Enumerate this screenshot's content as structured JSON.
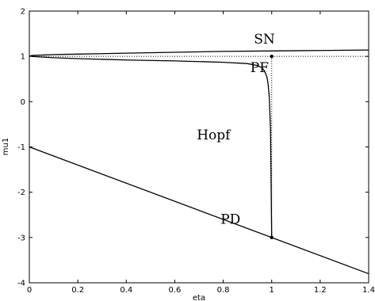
{
  "chart_data": {
    "type": "line",
    "title": "",
    "xlabel": "eta",
    "ylabel": "mu1",
    "xlim": [
      0,
      1.4
    ],
    "ylim": [
      -4,
      2
    ],
    "xticks": [
      "0",
      "0.2",
      "0.4",
      "0.6",
      "0.8",
      "1",
      "1.2",
      "1.4"
    ],
    "yticks": [
      "2",
      "1",
      "0",
      "-1",
      "-2",
      "-3",
      "-4"
    ],
    "grid": false,
    "series": [
      {
        "style": "solid",
        "x": [
          0,
          0.01,
          0.1,
          0.2,
          0.4,
          0.6,
          0.8,
          1.0,
          1.2,
          1.4
        ],
        "y": [
          1.0,
          1.02,
          1.04,
          1.05,
          1.07,
          1.09,
          1.11,
          1.12,
          1.13,
          1.14
        ]
      },
      {
        "style": "solid",
        "x": [
          0.01,
          0.1,
          0.2,
          0.4,
          0.6,
          0.8,
          0.9,
          0.94,
          0.96,
          0.97,
          0.98,
          0.985,
          0.99,
          0.995,
          1.0
        ],
        "y": [
          1.0,
          0.97,
          0.95,
          0.92,
          0.9,
          0.87,
          0.84,
          0.8,
          0.75,
          0.68,
          0.55,
          0.4,
          0.1,
          -0.6,
          -3.0
        ]
      },
      {
        "style": "solid",
        "x": [
          0,
          1.4
        ],
        "y": [
          -1.0,
          -3.8
        ]
      },
      {
        "style": "dotted",
        "x": [
          0,
          1.4
        ],
        "y": [
          1.0,
          1.0
        ]
      },
      {
        "style": "dotted",
        "x": [
          1.0,
          1.0
        ],
        "y": [
          1.0,
          -3.0
        ]
      }
    ],
    "points": [
      {
        "x": 1.0,
        "y": 1.0
      },
      {
        "x": 1.0,
        "y": -3.0
      }
    ],
    "annotations": [
      {
        "text": "SN",
        "x": 0.97,
        "y": 1.28
      },
      {
        "text": "PF",
        "x": 0.95,
        "y": 0.65
      },
      {
        "text": "Hopf",
        "x": 0.76,
        "y": -0.83
      },
      {
        "text": "PD",
        "x": 0.83,
        "y": -2.7
      }
    ]
  }
}
